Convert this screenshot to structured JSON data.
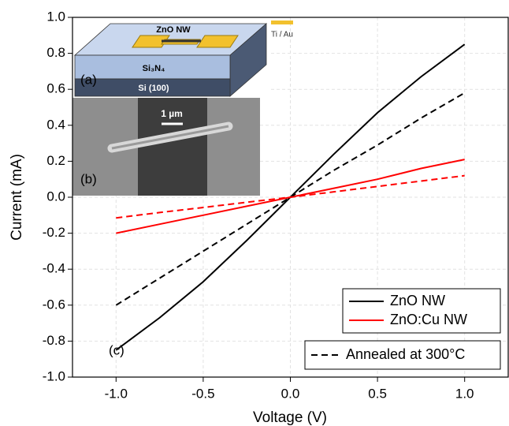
{
  "chart_data": {
    "type": "line",
    "x_label": "Voltage (V)",
    "y_label": "Current (mA)",
    "x": [
      -1,
      -0.75,
      -0.5,
      -0.25,
      0,
      0.25,
      0.5,
      0.75,
      1
    ],
    "xlim": [
      -1.25,
      1.25
    ],
    "xticks": [
      {
        "value": -1,
        "label": "-1.0"
      },
      -0.5,
      {
        "value": 0,
        "label": "0.0"
      },
      0.5,
      {
        "value": 1,
        "label": "1.0"
      }
    ],
    "ylim": [
      -1,
      1
    ],
    "yticks": [
      {
        "value": -1,
        "label": "-1.0"
      },
      -0.8,
      -0.6,
      -0.4,
      -0.2,
      {
        "value": 0,
        "label": "0.0"
      },
      0.2,
      0.4,
      0.6,
      0.8,
      {
        "value": 1,
        "label": "1.0"
      }
    ],
    "grid": true,
    "legend": "lower right",
    "series": [
      {
        "name": "ZnO NW",
        "color": "#000000",
        "dashed": false,
        "values": [
          -0.85,
          -0.67,
          -0.47,
          -0.24,
          0,
          0.24,
          0.47,
          0.67,
          0.85
        ]
      },
      {
        "name": "ZnO:Cu NW",
        "color": "#ff0000",
        "dashed": false,
        "values": [
          -0.2,
          -0.15,
          -0.1,
          -0.05,
          0,
          0.05,
          0.1,
          0.16,
          0.21
        ]
      },
      {
        "color": "#000000",
        "dashed": true,
        "values": [
          -0.6,
          -0.45,
          -0.3,
          -0.15,
          0,
          0.15,
          0.29,
          0.44,
          0.58
        ]
      },
      {
        "color": "#ff0000",
        "dashed": true,
        "values": [
          -0.115,
          -0.085,
          -0.057,
          -0.028,
          0,
          0.03,
          0.06,
          0.09,
          0.12
        ]
      }
    ],
    "dashed_legend_label": "Annealed at 300°C",
    "panel_label": "(c)"
  },
  "insets": {
    "a": {
      "label": "(a)",
      "nanowire": "ZnO NW",
      "contact": "Ti / Au",
      "layer_top": "Si₃N₄",
      "layer_bottom": "Si (100)"
    },
    "b": {
      "label": "(b)",
      "scale_bar": "1 µm"
    }
  }
}
